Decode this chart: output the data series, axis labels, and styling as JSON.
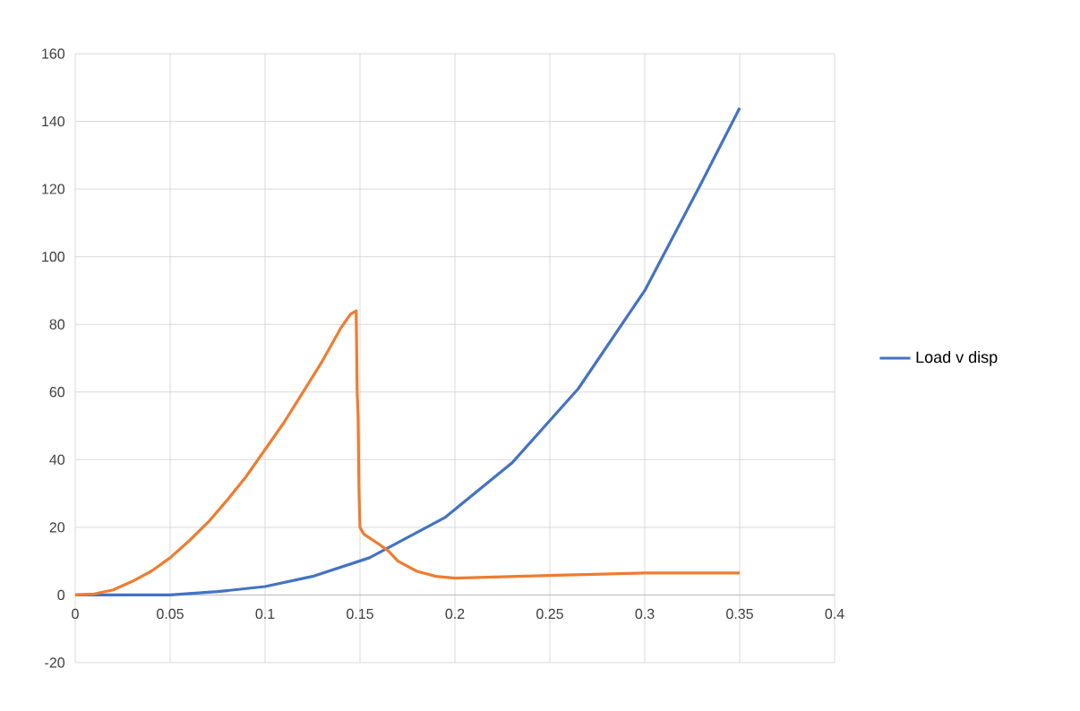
{
  "chart_data": {
    "type": "line",
    "xlim": [
      0,
      0.4
    ],
    "ylim": [
      -20,
      160
    ],
    "xticks": [
      0,
      0.05,
      0.1,
      0.15,
      0.2,
      0.25,
      0.3,
      0.35,
      0.4
    ],
    "yticks": [
      -20,
      0,
      20,
      40,
      60,
      80,
      100,
      120,
      140,
      160
    ],
    "grid": true,
    "legend": "right",
    "marker": "none",
    "line_style": "solid",
    "series": [
      {
        "name": "Load v disp",
        "color": "#4472c4",
        "x": [
          0,
          0.05,
          0.075,
          0.1,
          0.125,
          0.155,
          0.195,
          0.23,
          0.265,
          0.3,
          0.33,
          0.35
        ],
        "values": [
          0,
          0,
          1,
          2.5,
          5.5,
          11,
          23,
          39,
          61,
          90,
          122,
          144
        ]
      },
      {
        "color": "#ed7d31",
        "x": [
          0,
          0.01,
          0.02,
          0.03,
          0.04,
          0.05,
          0.06,
          0.07,
          0.08,
          0.09,
          0.1,
          0.11,
          0.12,
          0.13,
          0.14,
          0.145,
          0.148,
          0.1485,
          0.149,
          0.1495,
          0.15,
          0.152,
          0.16,
          0.165,
          0.17,
          0.18,
          0.19,
          0.2,
          0.25,
          0.3,
          0.35
        ],
        "values": [
          0,
          0.3,
          1.5,
          4,
          7,
          11,
          16,
          21.5,
          28,
          35,
          43,
          51,
          60,
          69,
          79,
          83,
          84,
          60,
          53,
          30,
          20,
          18,
          15,
          13,
          10,
          7,
          5.5,
          5,
          5.8,
          6.5,
          6.5
        ]
      }
    ]
  }
}
